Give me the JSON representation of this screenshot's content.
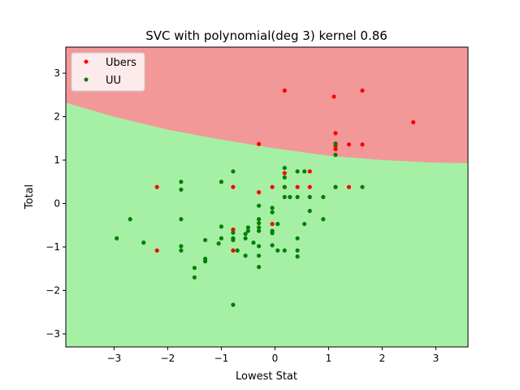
{
  "chart_data": {
    "type": "scatter",
    "title": "SVC with polynomial(deg 3) kernel 0.86",
    "xlabel": "Lowest Stat",
    "ylabel": "Total",
    "xlim": [
      -3.9,
      3.6
    ],
    "ylim": [
      -3.3,
      3.6
    ],
    "x_ticks": [
      -3,
      -2,
      -1,
      0,
      1,
      2,
      3
    ],
    "y_ticks": [
      -3,
      -2,
      -1,
      0,
      1,
      2,
      3
    ],
    "x_tick_labels": [
      "−3",
      "−2",
      "−1",
      "0",
      "1",
      "2",
      "3"
    ],
    "y_tick_labels": [
      "−3",
      "−2",
      "−1",
      "0",
      "1",
      "2",
      "3"
    ],
    "grid": false,
    "legend_position": "top-left",
    "regions": {
      "upper_color": "#f29898",
      "lower_color": "#a6f0a6",
      "boundary": {
        "x": [
          -3.9,
          -3.0,
          -2.0,
          -1.0,
          0.0,
          1.0,
          2.0,
          3.0,
          3.6
        ],
        "y": [
          2.32,
          2.0,
          1.7,
          1.47,
          1.27,
          1.1,
          1.0,
          0.94,
          0.93
        ]
      }
    },
    "series": [
      {
        "name": "Ubers",
        "color": "#ff0000",
        "points": [
          [
            0.18,
            2.6
          ],
          [
            1.1,
            2.46
          ],
          [
            1.63,
            2.6
          ],
          [
            2.58,
            1.87
          ],
          [
            1.13,
            1.62
          ],
          [
            1.13,
            1.38
          ],
          [
            1.13,
            1.32
          ],
          [
            1.13,
            1.25
          ],
          [
            1.38,
            1.36
          ],
          [
            1.63,
            1.36
          ],
          [
            -0.3,
            1.37
          ],
          [
            0.18,
            0.7
          ],
          [
            0.65,
            0.74
          ],
          [
            0.18,
            0.38
          ],
          [
            -0.05,
            0.38
          ],
          [
            0.42,
            0.38
          ],
          [
            0.65,
            0.38
          ],
          [
            1.13,
            0.38
          ],
          [
            1.38,
            0.38
          ],
          [
            -0.3,
            0.26
          ],
          [
            -0.78,
            0.38
          ],
          [
            -2.2,
            0.38
          ],
          [
            -0.78,
            -0.6
          ],
          [
            -0.05,
            -0.47
          ],
          [
            -2.2,
            -1.08
          ],
          [
            -0.78,
            -1.08
          ]
        ]
      },
      {
        "name": "UU",
        "color": "#008000",
        "points": [
          [
            1.13,
            1.37
          ],
          [
            1.13,
            1.12
          ],
          [
            0.18,
            0.82
          ],
          [
            0.42,
            0.74
          ],
          [
            0.55,
            0.74
          ],
          [
            -0.78,
            0.74
          ],
          [
            0.18,
            0.6
          ],
          [
            -1.0,
            0.5
          ],
          [
            -1.75,
            0.5
          ],
          [
            -1.75,
            0.32
          ],
          [
            0.18,
            0.38
          ],
          [
            1.13,
            0.38
          ],
          [
            1.63,
            0.38
          ],
          [
            0.18,
            0.15
          ],
          [
            0.28,
            0.15
          ],
          [
            0.42,
            0.15
          ],
          [
            0.65,
            0.15
          ],
          [
            0.9,
            0.15
          ],
          [
            -0.05,
            -0.1
          ],
          [
            -0.3,
            -0.05
          ],
          [
            0.65,
            -0.17
          ],
          [
            -0.05,
            -0.2
          ],
          [
            -2.7,
            -0.36
          ],
          [
            -1.75,
            -0.36
          ],
          [
            -0.3,
            -0.36
          ],
          [
            0.9,
            -0.36
          ],
          [
            -0.3,
            -0.45
          ],
          [
            0.05,
            -0.47
          ],
          [
            0.55,
            -0.47
          ],
          [
            -1.0,
            -0.53
          ],
          [
            -0.5,
            -0.55
          ],
          [
            -0.3,
            -0.55
          ],
          [
            -0.5,
            -0.63
          ],
          [
            -0.05,
            -0.63
          ],
          [
            -0.3,
            -0.63
          ],
          [
            -0.05,
            -0.68
          ],
          [
            -0.78,
            -0.67
          ],
          [
            -0.55,
            -0.7
          ],
          [
            -0.55,
            -0.8
          ],
          [
            -1.0,
            -0.8
          ],
          [
            -0.78,
            -0.8
          ],
          [
            0.42,
            -0.8
          ],
          [
            -2.95,
            -0.8
          ],
          [
            -1.3,
            -0.84
          ],
          [
            -0.78,
            -0.84
          ],
          [
            -0.4,
            -0.9
          ],
          [
            -2.45,
            -0.9
          ],
          [
            -1.05,
            -0.92
          ],
          [
            -1.75,
            -0.98
          ],
          [
            -0.3,
            -0.98
          ],
          [
            -0.05,
            -0.96
          ],
          [
            -1.75,
            -1.08
          ],
          [
            -0.7,
            -1.08
          ],
          [
            0.05,
            -1.08
          ],
          [
            0.18,
            -1.08
          ],
          [
            0.42,
            -1.08
          ],
          [
            -0.55,
            -1.2
          ],
          [
            -0.3,
            -1.2
          ],
          [
            0.42,
            -1.22
          ],
          [
            -1.3,
            -1.27
          ],
          [
            -1.3,
            -1.33
          ],
          [
            -1.5,
            -1.48
          ],
          [
            -0.3,
            -1.46
          ],
          [
            -1.5,
            -1.7
          ],
          [
            -0.78,
            -2.33
          ]
        ]
      }
    ]
  }
}
